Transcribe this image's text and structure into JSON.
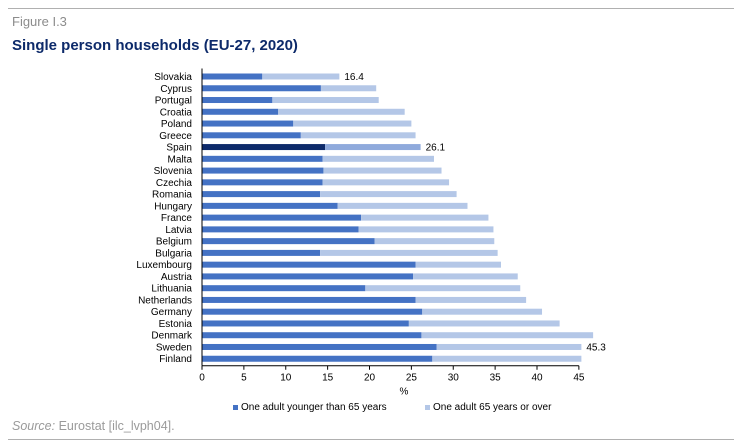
{
  "figure": {
    "label": "Figure I.3",
    "title": "Single person households (EU-27, 2020)",
    "source_label": "Source:",
    "source_text": " Eurostat [ilc_lvph04]."
  },
  "colors": {
    "younger": "#4472c4",
    "older": "#b4c7e7",
    "highlight_younger": "#0d2a6a",
    "highlight_older": "#8faadc",
    "axis": "#000000",
    "text": "#000000"
  },
  "chart_data": {
    "type": "bar",
    "orientation": "horizontal",
    "stacked": true,
    "categories": [
      "Slovakia",
      "Cyprus",
      "Portugal",
      "Croatia",
      "Poland",
      "Greece",
      "Spain",
      "Malta",
      "Slovenia",
      "Czechia",
      "Romania",
      "Hungary",
      "France",
      "Latvia",
      "Belgium",
      "Bulgaria",
      "Luxembourg",
      "Austria",
      "Lithuania",
      "Netherlands",
      "Germany",
      "Estonia",
      "Denmark",
      "Sweden",
      "Finland"
    ],
    "series": [
      {
        "name": "One adult younger than 65 years",
        "values": [
          7.2,
          14.2,
          8.4,
          9.1,
          10.9,
          11.8,
          14.7,
          14.4,
          14.5,
          14.4,
          14.1,
          16.2,
          19.0,
          18.7,
          20.6,
          14.1,
          25.5,
          25.2,
          19.5,
          25.5,
          26.3,
          24.7,
          26.2,
          28.0,
          27.5
        ]
      },
      {
        "name": "One adult 65 years or over",
        "values": [
          9.2,
          6.6,
          12.7,
          15.1,
          14.1,
          13.7,
          11.4,
          13.3,
          14.1,
          15.1,
          16.3,
          15.5,
          15.2,
          16.1,
          14.3,
          21.2,
          10.2,
          12.5,
          18.5,
          13.2,
          14.3,
          18.0,
          20.5,
          17.3,
          17.8
        ]
      }
    ],
    "highlight_category": "Spain",
    "data_labels": [
      {
        "category": "Slovakia",
        "text": "16.4"
      },
      {
        "category": "Spain",
        "text": "26.1"
      },
      {
        "category": "Sweden",
        "text": "45.3"
      }
    ],
    "xlim": [
      0,
      45
    ],
    "x_ticks": [
      0,
      5,
      10,
      15,
      20,
      25,
      30,
      35,
      40,
      45
    ],
    "x_tick_labels": [
      "0",
      "5",
      "10",
      "15",
      "20",
      "25",
      "30",
      "35",
      "40",
      "45"
    ],
    "xlabel": "%",
    "grid": false,
    "legend_position": "bottom"
  }
}
